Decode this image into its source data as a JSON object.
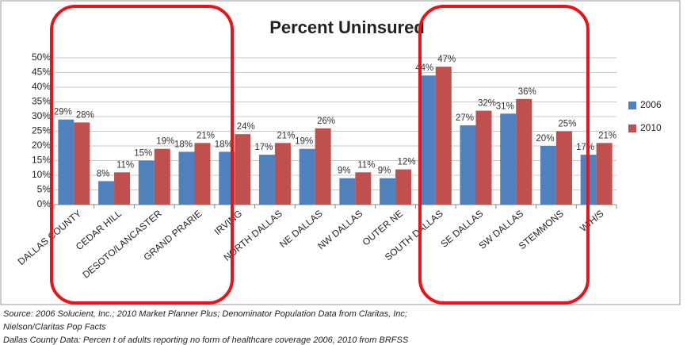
{
  "chart_data": {
    "type": "bar",
    "title": "Percent Uninsured",
    "categories": [
      "DALLAS COUNTY",
      "CEDAR HILL",
      "DESOTO/LANCASTER",
      "GRAND PRARIE",
      "IRVING",
      "NORTH DALLAS",
      "NE DALLAS",
      "NW DALLAS",
      "OUTER NE",
      "SOUTH DALLAS",
      "SE DALLAS",
      "SW DALLAS",
      "STEMMONS",
      "W/H/S"
    ],
    "series": [
      {
        "name": "2006",
        "color": "#4f81bd",
        "values": [
          29,
          8,
          15,
          18,
          18,
          17,
          19,
          9,
          9,
          44,
          27,
          31,
          20,
          17
        ],
        "value_labels": [
          "29%",
          "8%",
          "15%",
          "18%",
          "18%",
          "17%",
          "19%",
          "9%",
          "9%",
          "44%",
          "27%",
          "31%",
          "20%",
          "17%"
        ]
      },
      {
        "name": "2010",
        "color": "#c0504d",
        "values": [
          28,
          11,
          19,
          21,
          24,
          21,
          26,
          11,
          12,
          47,
          32,
          36,
          25,
          21
        ],
        "value_labels": [
          "28%",
          "11%",
          "19%",
          "21%",
          "24%",
          "21%",
          "26%",
          "11%",
          "12%",
          "47%",
          "32%",
          "36%",
          "25%",
          "21%"
        ]
      }
    ],
    "ylim": [
      0,
      50
    ],
    "yticks": [
      {
        "value": 0,
        "label": "0%"
      },
      {
        "value": 5,
        "label": "5%"
      },
      {
        "value": 10,
        "label": "10%"
      },
      {
        "value": 15,
        "label": "15%"
      },
      {
        "value": 20,
        "label": "20%"
      },
      {
        "value": 25,
        "label": "25%"
      },
      {
        "value": 30,
        "label": "30%"
      },
      {
        "value": 35,
        "label": "35%"
      },
      {
        "value": 40,
        "label": "40%"
      },
      {
        "value": 45,
        "label": "45%"
      },
      {
        "value": 50,
        "label": "50%"
      }
    ],
    "grid": true,
    "legend": "right",
    "footnotes": [
      "Source: 2006 Solucient, Inc.; 2010 Market Planner Plus; Denominator Population Data from Claritas, Inc;",
      "Nielson/Claritas Pop Facts",
      "Dallas County Data: Percen t of adults reporting no form of healthcare coverage 2006, 2010 from BRFSS"
    ]
  }
}
